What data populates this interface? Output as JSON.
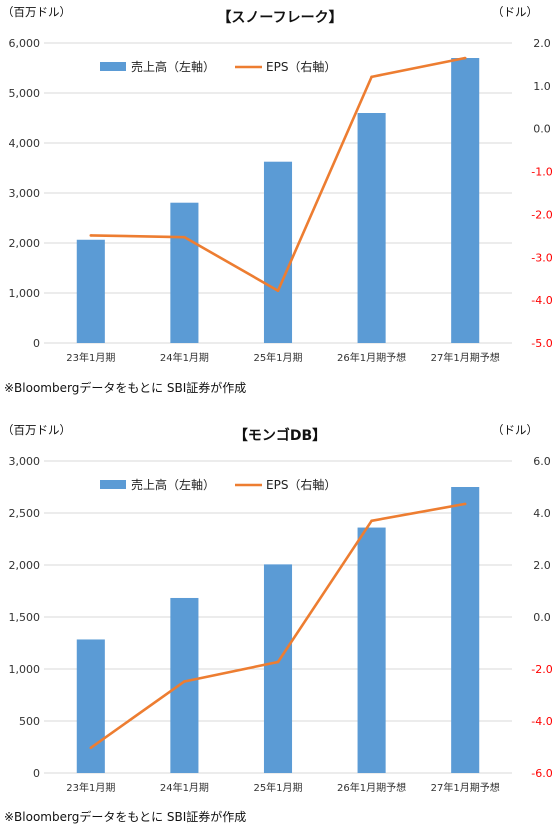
{
  "charts": [
    {
      "footnote": "※Bloombergデータをもとに SBI証券が作成",
      "chart_data": {
        "type": "bar+line",
        "title": "【スノーフレーク】",
        "left_unit": "（百万ドル）",
        "right_unit": "（ドル）",
        "categories": [
          "23年1月期",
          "24年1月期",
          "25年1月期",
          "26年1月期予想",
          "27年1月期予想"
        ],
        "left_ylim": [
          0,
          6000
        ],
        "left_ticks": [
          0,
          1000,
          2000,
          3000,
          4000,
          5000,
          6000
        ],
        "left_tick_labels": [
          "0",
          "1,000",
          "2,000",
          "3,000",
          "4,000",
          "5,000",
          "6,000"
        ],
        "right_ylim": [
          -5.0,
          2.0
        ],
        "right_ticks": [
          2.0,
          1.0,
          0.0,
          -1.0,
          -2.0,
          -3.0,
          -4.0,
          -5.0
        ],
        "right_tick_labels": [
          "2.0",
          "1.0",
          "0.0",
          "-1.0",
          "-2.0",
          "-3.0",
          "-4.0",
          "-5.0"
        ],
        "series": [
          {
            "name": "売上高（左軸）",
            "type": "bar",
            "axis": "left",
            "color": "#5b9bd5",
            "values": [
              2065,
              2806,
              3626,
              4600,
              5700
            ]
          },
          {
            "name": "EPS（右軸）",
            "type": "line",
            "axis": "right",
            "color": "#ed7d31",
            "values": [
              -2.49,
              -2.53,
              -3.78,
              1.21,
              1.65
            ]
          }
        ],
        "legend": "top-left",
        "negative_tick_color": "#ff0000"
      }
    },
    {
      "footnote": "※Bloombergデータをもとに SBI証券が作成",
      "chart_data": {
        "type": "bar+line",
        "title": "【モンゴDB】",
        "left_unit": "（百万ドル）",
        "right_unit": "（ドル）",
        "categories": [
          "23年1月期",
          "24年1月期",
          "25年1月期",
          "26年1月期予想",
          "27年1月期予想"
        ],
        "left_ylim": [
          0,
          3000
        ],
        "left_ticks": [
          0,
          500,
          1000,
          1500,
          2000,
          2500,
          3000
        ],
        "left_tick_labels": [
          "0",
          "500",
          "1,000",
          "1,500",
          "2,000",
          "2,500",
          "3,000"
        ],
        "right_ylim": [
          -6.0,
          6.0
        ],
        "right_ticks": [
          6.0,
          4.0,
          2.0,
          0.0,
          -2.0,
          -4.0,
          -6.0
        ],
        "right_tick_labels": [
          "6.0",
          "4.0",
          "2.0",
          "0.0",
          "-2.0",
          "-4.0",
          "-6.0"
        ],
        "series": [
          {
            "name": "売上高（左軸）",
            "type": "bar",
            "axis": "left",
            "color": "#5b9bd5",
            "values": [
              1284,
              1683,
              2006,
              2360,
              2750
            ]
          },
          {
            "name": "EPS（右軸）",
            "type": "line",
            "axis": "right",
            "color": "#ed7d31",
            "values": [
              -5.03,
              -2.48,
              -1.73,
              3.7,
              4.35
            ]
          }
        ],
        "legend": "top-left",
        "negative_tick_color": "#ff0000"
      }
    }
  ]
}
